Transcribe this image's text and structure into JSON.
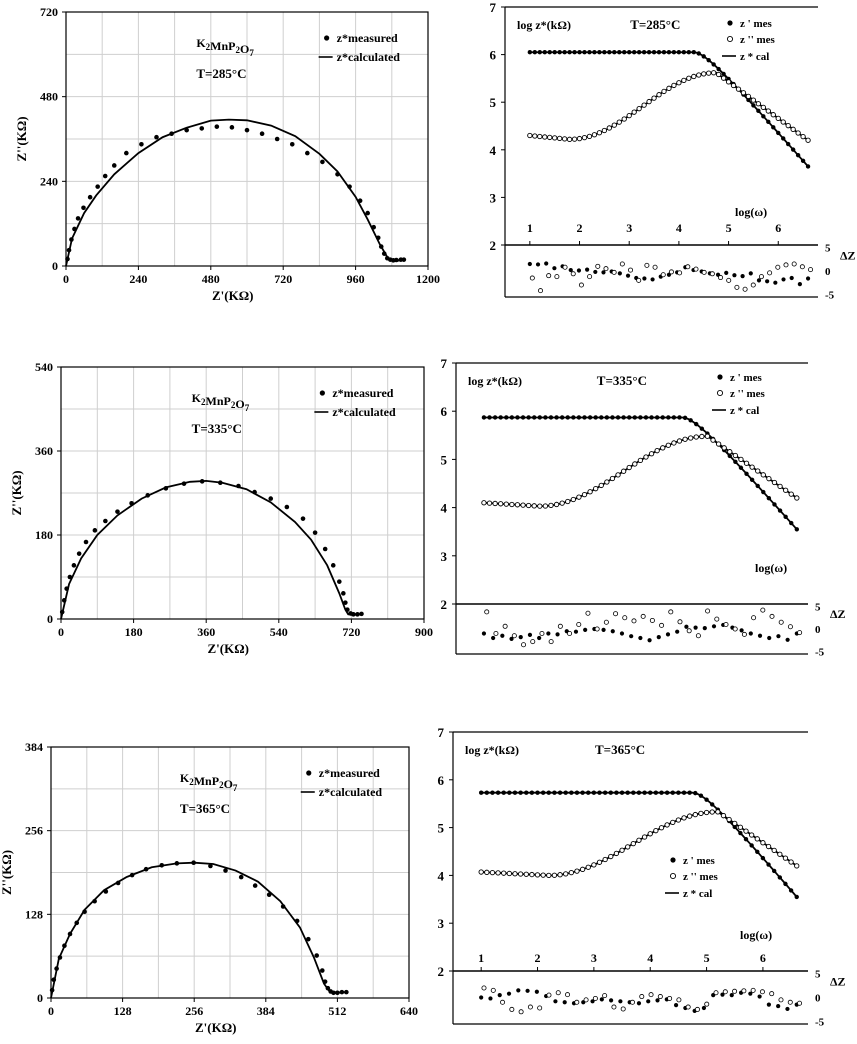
{
  "chart_data": [
    {
      "type": "scatter",
      "name": "nyquist-285",
      "material_label": "K2MnP2O7",
      "temperature_label": "T=285°C",
      "xlabel": "Z'(KΩ)",
      "ylabel": "Z''(KΩ)",
      "xlim": [
        0,
        1200
      ],
      "ylim": [
        0,
        720
      ],
      "xticks": [
        0,
        240,
        480,
        720,
        960,
        1200
      ],
      "yticks": [
        0,
        240,
        480,
        720
      ],
      "grid": true,
      "legend": [
        "z*measured",
        "z*calculated"
      ],
      "measured": {
        "x": [
          5,
          10,
          18,
          28,
          40,
          58,
          80,
          105,
          130,
          160,
          200,
          250,
          300,
          350,
          400,
          450,
          500,
          550,
          600,
          650,
          700,
          750,
          800,
          850,
          900,
          940,
          975,
          1000,
          1020,
          1035,
          1045,
          1055,
          1065,
          1075,
          1085,
          1095,
          1110,
          1120
        ],
        "y": [
          20,
          45,
          75,
          105,
          135,
          165,
          195,
          225,
          255,
          285,
          320,
          345,
          365,
          375,
          385,
          390,
          395,
          393,
          385,
          375,
          360,
          345,
          320,
          295,
          260,
          225,
          185,
          150,
          110,
          80,
          55,
          35,
          22,
          18,
          16,
          17,
          18,
          18
        ]
      },
      "calculated": {
        "x": [
          0,
          20,
          60,
          100,
          160,
          240,
          320,
          400,
          480,
          540,
          600,
          680,
          760,
          840,
          900,
          960,
          1000,
          1040,
          1070,
          1080,
          1090,
          1100,
          1110,
          1120
        ],
        "y": [
          0,
          78,
          150,
          200,
          260,
          320,
          365,
          392,
          412,
          415,
          413,
          398,
          368,
          318,
          268,
          196,
          132,
          62,
          18,
          15,
          14,
          15,
          16,
          16
        ]
      }
    },
    {
      "type": "line",
      "name": "bode-285",
      "temperature_label": "T=285°C",
      "ylabel": "log z*(kΩ)",
      "xlabel": "log(ω)",
      "residual_label": "ΔZ",
      "xlim": [
        0.5,
        6.8
      ],
      "ylim": [
        2,
        7
      ],
      "residual_ylim": [
        -5,
        5
      ],
      "xticks": [
        1,
        2,
        3,
        4,
        5,
        6
      ],
      "yticks": [
        2,
        3,
        4,
        5,
        6,
        7
      ],
      "residual_ticks": [
        5,
        0,
        -5
      ],
      "legend": [
        "z ' mes",
        "z '' mes",
        "z * cal"
      ],
      "z1": {
        "plateau": 6.05,
        "knee": 4.3,
        "end": 3.65
      },
      "z2": {
        "start": 4.3,
        "min": 4.22,
        "min_x": 1.8,
        "peak": 5.62,
        "peak_x": 4.75,
        "end": 4.2
      },
      "residual_z1": [
        1.5,
        1.4,
        1.6,
        0.6,
        1.0,
        0.2,
        0.1,
        0.3,
        -0.2,
        -0.3,
        -0.1,
        -0.5,
        -1.0,
        -1.5,
        -1.6,
        -1.8,
        -1.2,
        -0.8,
        -0.3,
        0.8,
        0.2,
        -0.1,
        -0.5,
        -0.8,
        -0.4,
        -0.9,
        -1.1,
        -0.5,
        -2.0,
        -2.2,
        -2.5,
        -1.8,
        -1.5,
        -2.8,
        -1.6
      ],
      "residual_z2": [
        -1.5,
        -4.2,
        -1.0,
        -1.2,
        0.8,
        -0.6,
        -3.0,
        -1.2,
        1.0,
        0.5,
        -0.3,
        1.5,
        0.2,
        -2.0,
        1.2,
        0.8,
        -0.8,
        -0.2,
        -0.4,
        0.9,
        0.4,
        -0.3,
        -0.6,
        -1.4,
        -2.0,
        -3.5,
        -3.9,
        -3.0,
        -1.2,
        -0.4,
        0.8,
        1.3,
        1.5,
        0.9,
        0.3
      ]
    },
    {
      "type": "scatter",
      "name": "nyquist-335",
      "material_label": "K2MnP2O7",
      "temperature_label": "T=335°C",
      "xlabel": "Z'(KΩ)",
      "ylabel": "Z''(KΩ)",
      "xlim": [
        0,
        900
      ],
      "ylim": [
        0,
        540
      ],
      "xticks": [
        0,
        180,
        360,
        540,
        720,
        900
      ],
      "yticks": [
        0,
        180,
        360,
        540
      ],
      "grid": true,
      "legend": [
        "z*measured",
        "z*calculated"
      ],
      "measured": {
        "x": [
          3,
          8,
          14,
          22,
          32,
          45,
          62,
          84,
          110,
          140,
          175,
          215,
          260,
          305,
          350,
          395,
          440,
          480,
          520,
          560,
          600,
          630,
          655,
          675,
          690,
          700,
          705,
          710,
          718,
          725,
          735,
          745
        ],
        "y": [
          15,
          40,
          65,
          90,
          115,
          140,
          165,
          190,
          210,
          230,
          248,
          265,
          280,
          290,
          295,
          292,
          285,
          272,
          258,
          240,
          215,
          185,
          150,
          115,
          80,
          55,
          35,
          20,
          12,
          10,
          10,
          11
        ]
      },
      "calculated": {
        "x": [
          0,
          20,
          50,
          90,
          140,
          200,
          260,
          320,
          360,
          400,
          460,
          520,
          580,
          620,
          660,
          690,
          705,
          712,
          720,
          735,
          748
        ],
        "y": [
          0,
          75,
          130,
          180,
          222,
          258,
          282,
          294,
          296,
          292,
          278,
          250,
          208,
          170,
          115,
          55,
          20,
          10,
          9,
          10,
          10
        ]
      }
    },
    {
      "type": "line",
      "name": "bode-335",
      "temperature_label": "T=335°C",
      "ylabel": "log z*(kΩ)",
      "xlabel": "log(ω)",
      "residual_label": "ΔZ",
      "xlim": [
        0.5,
        6.8
      ],
      "ylim": [
        2,
        7
      ],
      "residual_ylim": [
        -5,
        5
      ],
      "yticks": [
        2,
        3,
        4,
        5,
        6,
        7
      ],
      "residual_ticks": [
        5,
        0,
        -5
      ],
      "legend": [
        "z ' mes",
        "z '' mes",
        "z * cal"
      ],
      "z1": {
        "plateau": 5.87,
        "knee": 4.55,
        "end": 3.55
      },
      "z2": {
        "start": 4.1,
        "min": 4.03,
        "min_x": 2.0,
        "peak": 5.48,
        "peak_x": 5.0,
        "end": 4.2
      },
      "residual_z1": [
        -1.0,
        -2.0,
        -1.5,
        -2.2,
        -1.8,
        -1.3,
        -2.0,
        -1.0,
        -1.2,
        -0.5,
        -0.6,
        -0.2,
        0.0,
        -0.2,
        -0.5,
        -1.0,
        -1.6,
        -2.0,
        -2.5,
        -1.8,
        -1.2,
        -0.6,
        0.5,
        0.3,
        0.2,
        0.6,
        0.9,
        0.3,
        -0.3,
        -1.0,
        -1.5,
        -2.0,
        -1.6,
        -2.4,
        -1.0
      ],
      "residual_z2": [
        3.8,
        -1.0,
        0.6,
        -1.5,
        -3.5,
        -2.8,
        -1.0,
        -2.8,
        0.6,
        -1.0,
        1.0,
        3.5,
        0.0,
        1.5,
        3.4,
        2.5,
        1.8,
        2.8,
        1.9,
        0.8,
        3.8,
        1.6,
        -0.4,
        -1.5,
        4.0,
        2.2,
        1.0,
        0.0,
        -1.2,
        2.5,
        4.2,
        2.8,
        1.5,
        0.5,
        -0.8
      ]
    },
    {
      "type": "scatter",
      "name": "nyquist-365",
      "material_label": "K2MnP2O7",
      "temperature_label": "T=365°C",
      "xlabel": "Z'(KΩ)",
      "ylabel": "Z''(KΩ)",
      "xlim": [
        0,
        640
      ],
      "ylim": [
        0,
        384
      ],
      "xticks": [
        0,
        128,
        256,
        384,
        512,
        640
      ],
      "yticks": [
        0,
        128,
        256,
        384
      ],
      "grid": true,
      "legend": [
        "z*measured",
        "z*calculated"
      ],
      "measured": {
        "x": [
          2,
          5,
          10,
          16,
          24,
          34,
          46,
          60,
          78,
          98,
          120,
          145,
          170,
          198,
          225,
          255,
          285,
          312,
          340,
          365,
          390,
          415,
          440,
          460,
          475,
          485,
          490,
          495,
          500,
          505,
          512,
          520,
          528
        ],
        "y": [
          12,
          28,
          45,
          62,
          80,
          98,
          115,
          132,
          148,
          163,
          176,
          188,
          197,
          203,
          206,
          207,
          202,
          195,
          185,
          172,
          158,
          140,
          118,
          90,
          65,
          42,
          25,
          15,
          10,
          8,
          8,
          9,
          9
        ]
      },
      "calculated": {
        "x": [
          0,
          14,
          34,
          60,
          95,
          135,
          180,
          225,
          256,
          290,
          330,
          370,
          410,
          445,
          470,
          488,
          498,
          505,
          512,
          528
        ],
        "y": [
          0,
          60,
          98,
          135,
          165,
          185,
          200,
          206,
          207,
          205,
          195,
          178,
          148,
          108,
          62,
          22,
          10,
          8,
          8,
          9
        ]
      }
    },
    {
      "type": "line",
      "name": "bode-365",
      "temperature_label": "T=365°C",
      "ylabel": "log z*(kΩ)",
      "xlabel": "log(ω)",
      "residual_label": "ΔZ",
      "xlim": [
        0.5,
        6.8
      ],
      "ylim": [
        2,
        7
      ],
      "residual_ylim": [
        -5,
        5
      ],
      "xticks": [
        1,
        2,
        3,
        4,
        5,
        6
      ],
      "yticks": [
        2,
        3,
        4,
        5,
        6,
        7
      ],
      "residual_ticks": [
        5,
        0,
        -5
      ],
      "legend": [
        "z ' mes",
        "z '' mes",
        "z * cal"
      ],
      "z1": {
        "plateau": 5.73,
        "knee": 4.75,
        "end": 3.55
      },
      "z2": {
        "start": 4.07,
        "min": 4.0,
        "min_x": 2.2,
        "peak": 5.33,
        "peak_x": 5.2,
        "end": 4.2
      },
      "residual_z1": [
        0.0,
        -0.2,
        0.5,
        0.8,
        1.5,
        1.4,
        1.2,
        0.3,
        -0.8,
        -1.0,
        -1.2,
        -1.0,
        -0.8,
        -0.4,
        -0.6,
        -0.8,
        -1.0,
        -1.2,
        -0.8,
        -0.6,
        -0.4,
        -1.6,
        -2.2,
        -2.8,
        -2.2,
        0.5,
        0.6,
        0.5,
        1.0,
        0.8,
        0.2,
        -1.5,
        -1.8,
        -2.4,
        -1.5
      ],
      "residual_z2": [
        2.0,
        1.5,
        -1.0,
        -2.5,
        -3.0,
        -2.0,
        -2.2,
        0.5,
        1.0,
        0.6,
        -1.0,
        -0.5,
        -0.2,
        0.4,
        -2.0,
        -2.4,
        -1.0,
        0.2,
        0.6,
        0.2,
        -0.2,
        -0.5,
        -2.0,
        -2.5,
        -1.4,
        1.0,
        1.2,
        1.3,
        1.4,
        1.5,
        1.2,
        0.8,
        -0.5,
        -1.0,
        -1.2
      ]
    }
  ]
}
